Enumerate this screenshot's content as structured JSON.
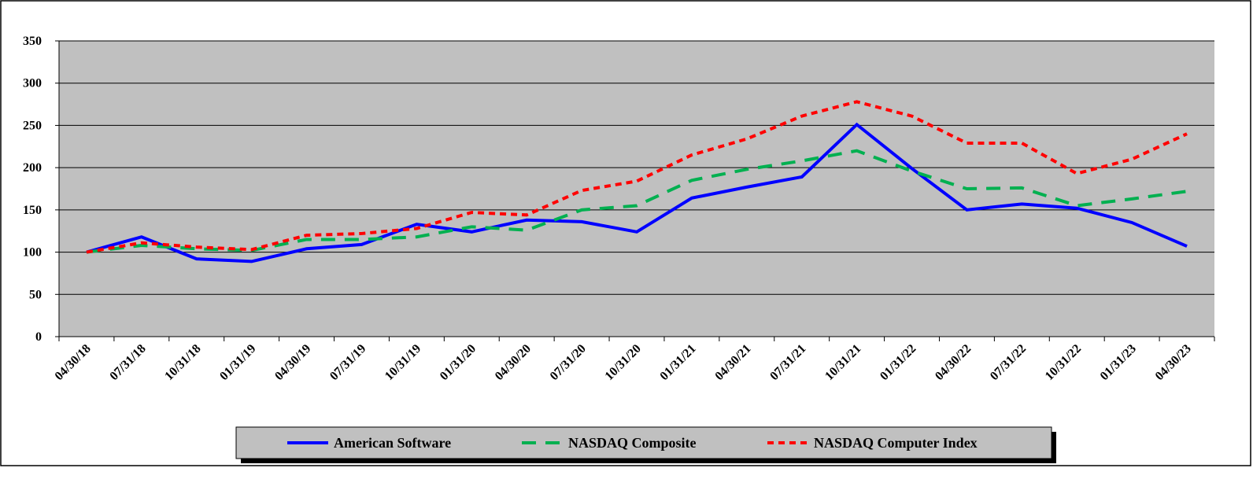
{
  "chart_data": {
    "type": "line",
    "title": "",
    "xlabel": "",
    "ylabel": "",
    "ylim": [
      0,
      350
    ],
    "yticks": [
      0,
      50,
      100,
      150,
      200,
      250,
      300,
      350
    ],
    "grid": true,
    "legend_position": "bottom",
    "categories": [
      "04/30/18",
      "07/31/18",
      "10/31/18",
      "01/31/19",
      "04/30/19",
      "07/31/19",
      "10/31/19",
      "01/31/20",
      "04/30/20",
      "07/31/20",
      "10/31/20",
      "01/31/21",
      "04/30/21",
      "07/31/21",
      "10/31/21",
      "01/31/22",
      "04/30/22",
      "07/31/22",
      "10/31/22",
      "01/31/23",
      "04/30/23"
    ],
    "series": [
      {
        "name": "American Software",
        "color": "#0000FF",
        "style": "solid",
        "values": [
          100,
          118,
          92,
          89,
          104,
          109,
          133,
          124,
          138,
          136,
          124,
          164,
          177,
          189,
          251,
          199,
          150,
          157,
          152,
          135,
          107
        ]
      },
      {
        "name": "NASDAQ Composite",
        "color": "#00B050",
        "style": "dash",
        "values": [
          100,
          108,
          104,
          102,
          115,
          115,
          118,
          130,
          126,
          150,
          155,
          185,
          198,
          208,
          220,
          196,
          175,
          176,
          155,
          163,
          172
        ]
      },
      {
        "name": "NASDAQ Computer Index",
        "color": "#FF0000",
        "style": "dot",
        "values": [
          100,
          111,
          106,
          103,
          120,
          122,
          128,
          147,
          144,
          173,
          184,
          215,
          234,
          261,
          278,
          261,
          229,
          229,
          193,
          210,
          240
        ]
      }
    ]
  }
}
